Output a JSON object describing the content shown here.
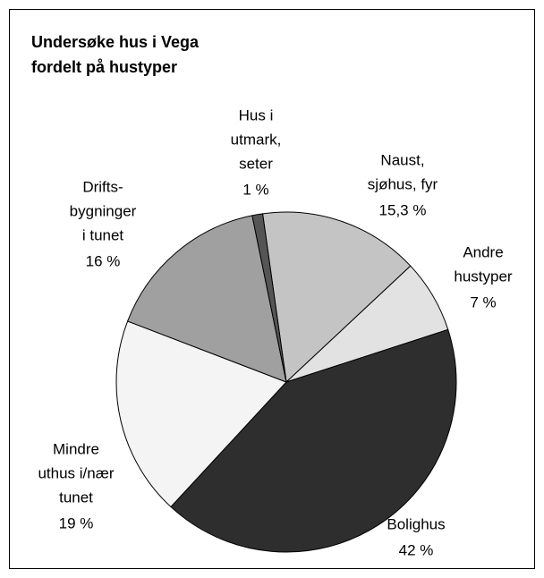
{
  "chart_data": {
    "type": "pie",
    "title": [
      "Undersøke hus i Vega",
      "fordelt på hustyper"
    ],
    "categories": [
      [
        "Naust,",
        "sjøhus, fyr"
      ],
      [
        "Andre",
        "hustyper"
      ],
      [
        "Bolighus"
      ],
      [
        "Mindre",
        "uthus i/nær",
        "tunet"
      ],
      [
        "Drifts-",
        "bygninger",
        "i tunet"
      ],
      [
        "Hus i",
        "utmark,",
        "seter"
      ]
    ],
    "values": [
      15.3,
      7,
      42,
      19,
      16,
      1
    ],
    "value_labels": [
      "15,3 %",
      "7 %",
      "42 %",
      "19 %",
      "16 %",
      "1 %"
    ],
    "colors": [
      "#c4c4c4",
      "#e2e2e2",
      "#2e2e2e",
      "#f4f4f4",
      "#a0a0a0",
      "#555555"
    ]
  }
}
